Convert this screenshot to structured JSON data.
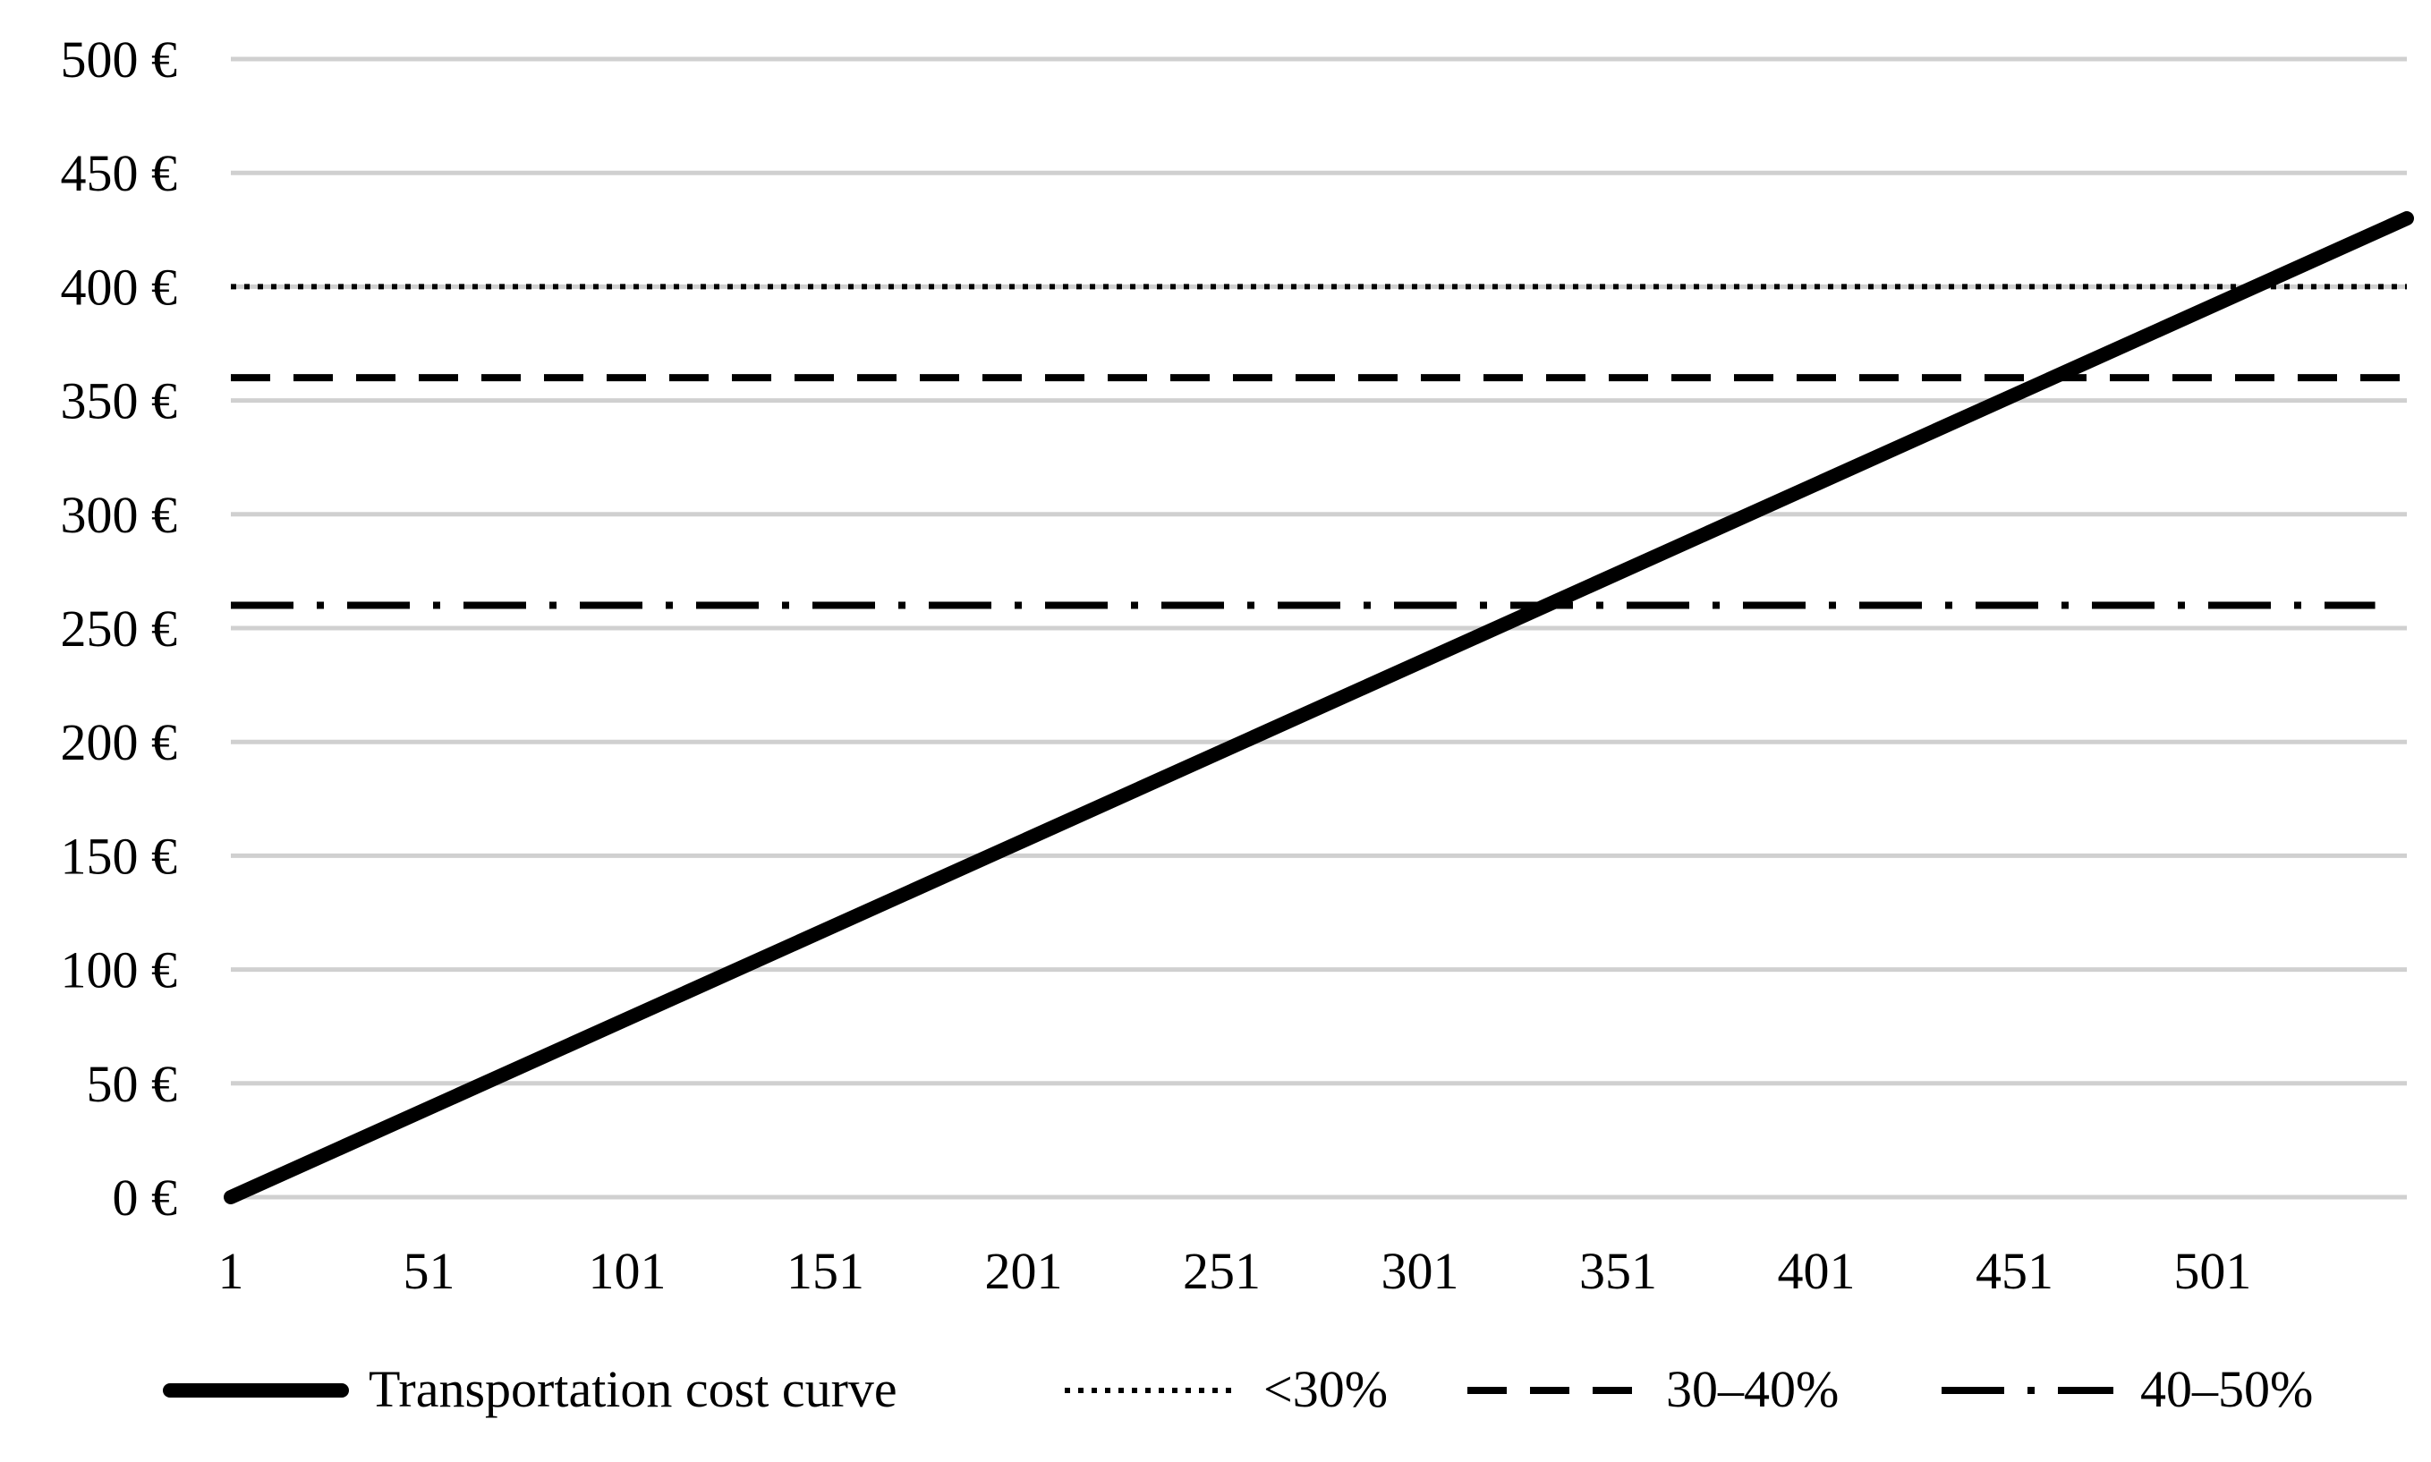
{
  "chart_data": {
    "type": "line",
    "title": "",
    "xlabel": "",
    "ylabel": "",
    "x_tick_labels": [
      "1",
      "51",
      "101",
      "151",
      "201",
      "251",
      "301",
      "351",
      "401",
      "451",
      "501"
    ],
    "x_ticks": [
      1,
      51,
      101,
      151,
      201,
      251,
      301,
      351,
      401,
      451,
      501
    ],
    "xlim": [
      1,
      550
    ],
    "y_ticks": [
      0,
      50,
      100,
      150,
      200,
      250,
      300,
      350,
      400,
      450,
      500
    ],
    "y_tick_labels": [
      "0 €",
      "50 €",
      "100 €",
      "150 €",
      "200 €",
      "250 €",
      "300 €",
      "350 €",
      "400 €",
      "450 €",
      "500 €"
    ],
    "ylim": [
      0,
      500
    ],
    "grid": "horizontal",
    "legend_position": "bottom",
    "series": [
      {
        "name": "Transportation cost curve",
        "style": "solid",
        "color": "#000000",
        "x": [
          1,
          550
        ],
        "y": [
          0,
          430
        ]
      },
      {
        "name": "<30%",
        "style": "dotted",
        "color": "#000000",
        "x": [
          1,
          550
        ],
        "y": [
          400,
          400
        ]
      },
      {
        "name": "30–40%",
        "style": "dashed",
        "color": "#000000",
        "x": [
          1,
          550
        ],
        "y": [
          360,
          360
        ]
      },
      {
        "name": "40–50%",
        "style": "dash-dot",
        "color": "#000000",
        "x": [
          1,
          542
        ],
        "y": [
          260,
          260
        ]
      }
    ]
  }
}
